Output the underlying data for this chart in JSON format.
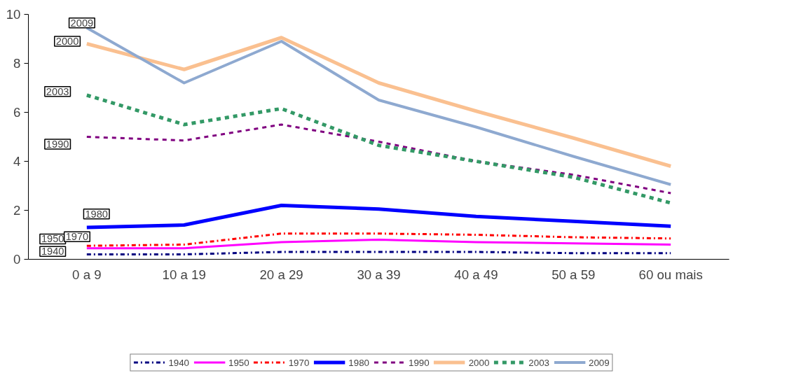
{
  "chart_data": {
    "type": "line",
    "categories": [
      "0 a 9",
      "10 a 19",
      "20 a 29",
      "30 a 39",
      "40 a 49",
      "50 a 59",
      "60 ou mais"
    ],
    "ylim": [
      0,
      10
    ],
    "yticks": [
      0,
      2,
      4,
      6,
      8,
      10
    ],
    "grid": false,
    "legend": "bottom",
    "series": [
      {
        "name": "1940",
        "color": "#000080",
        "line_style": "dashdot",
        "values": [
          0.2,
          0.2,
          0.3,
          0.3,
          0.3,
          0.25,
          0.25
        ]
      },
      {
        "name": "1950",
        "color": "#ff00ff",
        "line_style": "solid",
        "values": [
          0.45,
          0.45,
          0.7,
          0.8,
          0.7,
          0.65,
          0.6
        ]
      },
      {
        "name": "1970",
        "color": "#ff0000",
        "line_style": "dashdot",
        "values": [
          0.55,
          0.6,
          1.05,
          1.05,
          1.0,
          0.9,
          0.85
        ]
      },
      {
        "name": "1980",
        "color": "#0000ff",
        "line_style": "solid",
        "values": [
          1.3,
          1.4,
          2.2,
          2.05,
          1.75,
          1.55,
          1.35
        ]
      },
      {
        "name": "1990",
        "color": "#800080",
        "line_style": "dashed",
        "values": [
          5.0,
          4.85,
          5.5,
          4.8,
          4.0,
          3.45,
          2.7
        ]
      },
      {
        "name": "2000",
        "color": "#fac090",
        "line_style": "solid",
        "values": [
          8.8,
          7.75,
          9.05,
          7.2,
          6.05,
          4.95,
          3.8
        ]
      },
      {
        "name": "2003",
        "color": "#339966",
        "line_style": "dashed",
        "values": [
          6.7,
          5.5,
          6.15,
          4.65,
          4.0,
          3.35,
          2.3
        ]
      },
      {
        "name": "2009",
        "color": "#8ea9d0",
        "line_style": "solid",
        "values": [
          9.45,
          7.2,
          8.9,
          6.5,
          5.4,
          4.2,
          3.05
        ]
      }
    ]
  }
}
